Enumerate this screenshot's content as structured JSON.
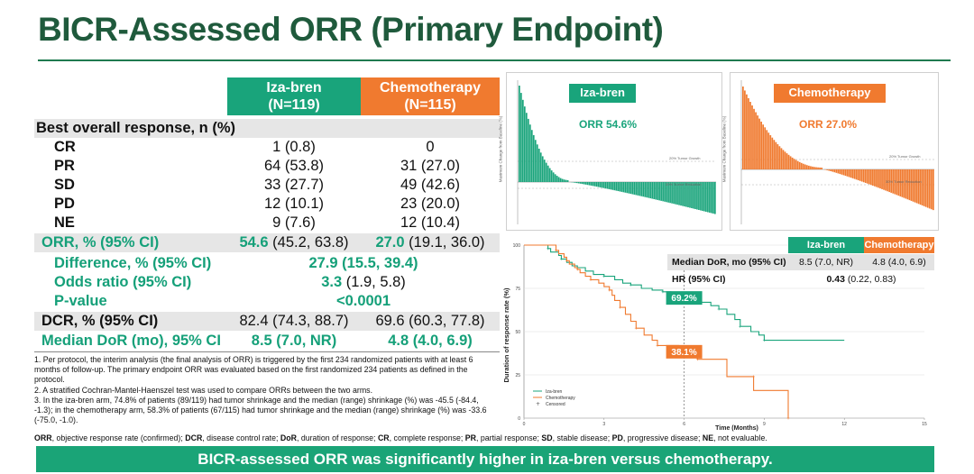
{
  "title": "BICR-Assessed ORR (Primary Endpoint)",
  "table": {
    "col1_name": "Iza-bren",
    "col1_n": "(N=119)",
    "col2_name": "Chemotherapy",
    "col2_n": "(N=115)",
    "section_header": "Best overall response, n (%)",
    "rows": [
      {
        "label": "CR",
        "v1": "1 (0.8)",
        "v2": "0"
      },
      {
        "label": "PR",
        "v1": "64 (53.8)",
        "v2": "31 (27.0)"
      },
      {
        "label": "SD",
        "v1": "33 (27.7)",
        "v2": "49 (42.6)"
      },
      {
        "label": "PD",
        "v1": "12 (10.1)",
        "v2": "23 (20.0)"
      },
      {
        "label": "NE",
        "v1": "9 (7.6)",
        "v2": "12 (10.4)"
      }
    ],
    "orr": {
      "label": "ORR, % (95% CI)",
      "v1_bold": "54.6",
      "v1_ci": "(45.2, 63.8)",
      "v2_bold": "27.0",
      "v2_ci": "(19.1, 36.0)"
    },
    "difference": {
      "label": "Difference, % (95% CI)",
      "value": "27.9 (15.5, 39.4)"
    },
    "odds": {
      "label": "Odds ratio (95% CI)",
      "bold": "3.3",
      "ci": "(1.9, 5.8)"
    },
    "pvalue": {
      "label": "P-value",
      "value": "<0.0001"
    },
    "dcr": {
      "label": "DCR, % (95% CI)",
      "v1": "82.4 (74.3, 88.7)",
      "v2": "69.6 (60.3, 77.8)"
    },
    "dor": {
      "label": "Median DoR (mo), 95% CI",
      "v1": "8.5 (7.0, NR)",
      "v2": "4.8 (4.0, 6.9)"
    }
  },
  "footnotes": [
    "1. Per protocol, the interim analysis (the final analysis of ORR) is triggered by the first 234 randomized patients with at least 6 months of follow-up. The primary endpoint ORR was evaluated based on the first randomized 234 patients as defined in the protocol.",
    "2. A stratified Cochran-Mantel-Haenszel test was used to compare ORRs between the two arms.",
    "3. In the iza-bren arm, 74.8% of patients (89/119) had tumor shrinkage and the median (range) shrinkage (%) was -45.5 (-84.4, -1.3); in the chemotherapy arm, 58.3% of patients (67/115) had tumor shrinkage and the median (range) shrinkage (%) was -33.6 (-75.0, -1.0)."
  ],
  "abbreviations": [
    {
      "term": "ORR",
      "def": ", objective response rate (confirmed); "
    },
    {
      "term": "DCR",
      "def": ", disease control rate; "
    },
    {
      "term": "DoR",
      "def": ", duration of response; "
    },
    {
      "term": "CR",
      "def": ", complete response; "
    },
    {
      "term": "PR",
      "def": ", partial response; "
    },
    {
      "term": "SD",
      "def": ", stable disease; "
    },
    {
      "term": "PD",
      "def": ", progressive disease; "
    },
    {
      "term": "NE",
      "def": ", not evaluable."
    }
  ],
  "banner": "BICR-assessed ORR was significantly higher in iza-bren versus chemotherapy.",
  "waterfall_left": {
    "tag": "Iza-bren",
    "orr": "ORR 54.6%",
    "growth_line": "20% Tumor Growth",
    "reduction_line": "30% Tumor Reduction",
    "y_title": "Maximum Change from Baseline (%)"
  },
  "waterfall_right": {
    "tag": "Chemotherapy",
    "orr": "ORR 27.0%",
    "growth_line": "20% Tumor Growth",
    "reduction_line": "30% Tumor Reduction",
    "y_title": "Maximum Change from Baseline (%)"
  },
  "dor_table": {
    "col1": "Iza-bren",
    "col2": "Chemotherapy",
    "row1_label": "Median DoR, mo (95% CI)",
    "row1_v1": "8.5 (7.0, NR)",
    "row1_v2": "4.8 (4.0, 6.9)",
    "row2_label": "HR (95% CI)",
    "row2_bold": "0.43",
    "row2_ci": "(0.22, 0.83)"
  },
  "chart_data": {
    "type": "line",
    "title": "",
    "xlabel": "Time (Months)",
    "ylabel": "Duration of response rate (%)",
    "xlim": [
      0,
      15
    ],
    "ylim": [
      0,
      100
    ],
    "xticks": [
      "0",
      "3",
      "6",
      "9",
      "12",
      "15"
    ],
    "yticks": [
      "0",
      "25",
      "50",
      "75",
      "100"
    ],
    "legend": [
      "Iza-bren",
      "Chemotherapy",
      "Censored"
    ],
    "legend_position": "bottom-left",
    "annotations": [
      {
        "x": 6,
        "y": 69.2,
        "label": "69.2%",
        "series": "Iza-bren"
      },
      {
        "x": 6,
        "y": 38.1,
        "label": "38.1%",
        "series": "Chemotherapy"
      }
    ],
    "series": [
      {
        "name": "Iza-bren",
        "color": "#19a47b",
        "x": [
          0,
          0.9,
          1.0,
          1.3,
          1.4,
          1.6,
          1.8,
          2.0,
          2.3,
          2.6,
          3.0,
          3.4,
          3.7,
          4.0,
          4.4,
          4.8,
          5.2,
          5.5,
          5.8,
          6.2,
          6.6,
          7.0,
          7.3,
          7.6,
          7.9,
          8.1,
          8.5,
          8.8,
          9.0,
          12.0
        ],
        "y": [
          100,
          98,
          96,
          94,
          92,
          90,
          88,
          87,
          85,
          83,
          82,
          80,
          78,
          77,
          75,
          74,
          73,
          71,
          70,
          69.2,
          67,
          65,
          63,
          60,
          57,
          53,
          50,
          48,
          45,
          45
        ]
      },
      {
        "name": "Chemotherapy",
        "color": "#f07a2f",
        "x": [
          0,
          1.2,
          1.3,
          1.5,
          1.6,
          1.7,
          1.9,
          2.0,
          2.1,
          2.3,
          2.5,
          2.8,
          3.0,
          3.2,
          3.3,
          3.4,
          3.6,
          3.8,
          4.0,
          4.2,
          4.5,
          4.8,
          5.0,
          5.8,
          6.0,
          6.5,
          7.6,
          7.6,
          8.6,
          8.6,
          9.9,
          9.9
        ],
        "y": [
          100,
          97,
          95,
          93,
          91,
          89,
          87,
          86,
          84,
          82,
          80,
          78,
          76,
          74,
          71,
          68,
          64,
          60,
          56,
          52,
          48,
          45,
          42,
          40,
          38.1,
          34,
          34,
          24,
          24,
          16,
          16,
          0
        ]
      }
    ]
  }
}
